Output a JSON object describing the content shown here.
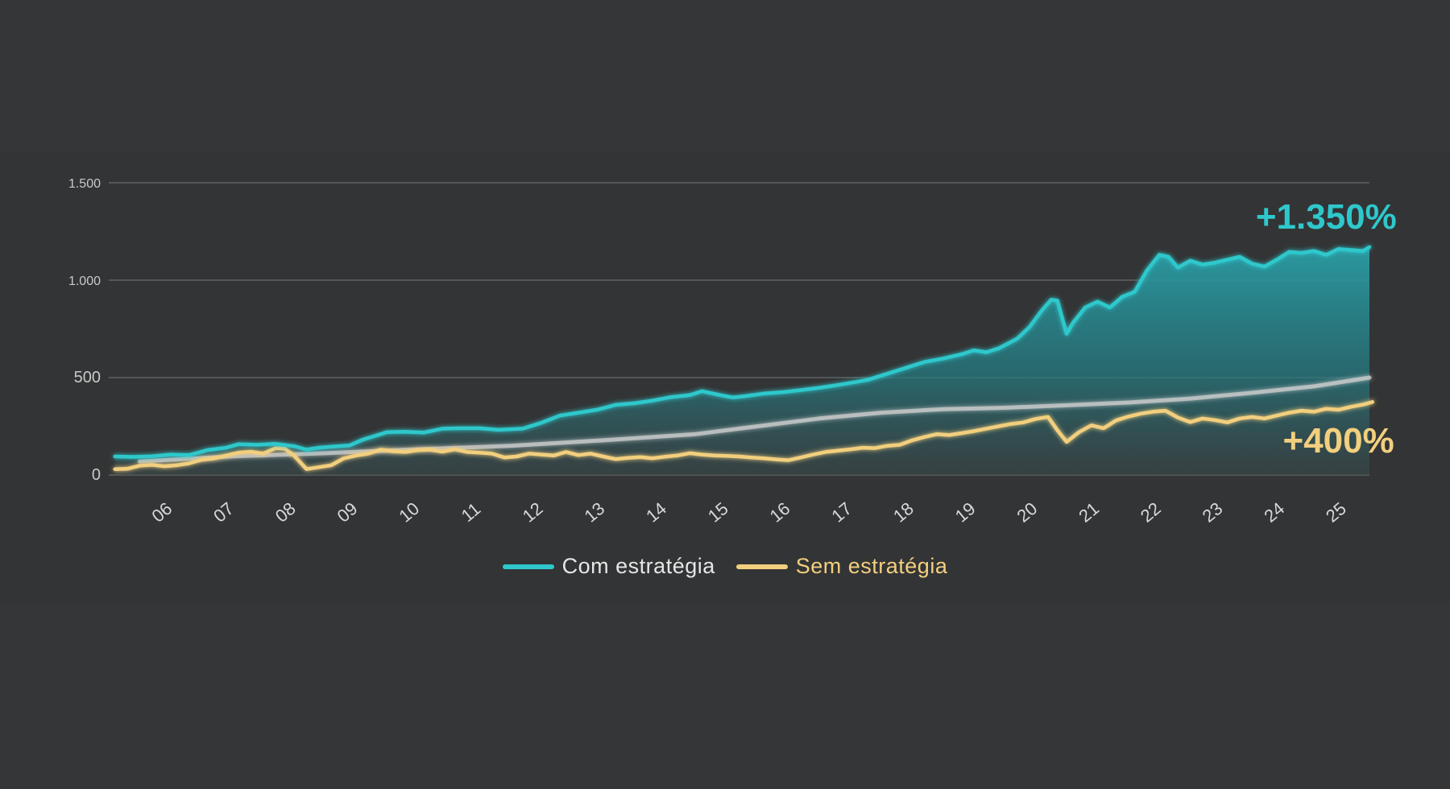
{
  "colors": {
    "background": "#353637",
    "com": "#2ec8cc",
    "sem": "#f2cf7e",
    "baseline": "#cfcfcf",
    "grid": "#6a6b6c"
  },
  "chart_data": {
    "type": "line",
    "title": "",
    "xlabel": "",
    "ylabel": "",
    "ylim": [
      0,
      1500
    ],
    "yticks": [
      0,
      500,
      1000,
      1500
    ],
    "ytick_labels": [
      "0",
      "500",
      "1.000",
      "1.500"
    ],
    "xlim": [
      2005.0,
      2025.4
    ],
    "xticks": [
      2006,
      2007,
      2008,
      2009,
      2010,
      2011,
      2012,
      2013,
      2014,
      2015,
      2016,
      2017,
      2018,
      2019,
      2020,
      2021,
      2022,
      2023,
      2024,
      2025
    ],
    "xtick_labels": [
      "06",
      "07",
      "08",
      "09",
      "10",
      "11",
      "12",
      "13",
      "14",
      "15",
      "16",
      "17",
      "18",
      "19",
      "20",
      "21",
      "22",
      "23",
      "24",
      "25"
    ],
    "grid": true,
    "legend_position": "bottom-center",
    "series": [
      {
        "name": "Com estratégia",
        "color": "#2ec8cc",
        "filled": true,
        "points": [
          [
            2005.1,
            95
          ],
          [
            2005.4,
            93
          ],
          [
            2005.7,
            96
          ],
          [
            2006.0,
            105
          ],
          [
            2006.3,
            102
          ],
          [
            2006.6,
            128
          ],
          [
            2006.9,
            140
          ],
          [
            2007.1,
            158
          ],
          [
            2007.4,
            155
          ],
          [
            2007.7,
            160
          ],
          [
            2008.0,
            148
          ],
          [
            2008.2,
            130
          ],
          [
            2008.4,
            140
          ],
          [
            2008.6,
            145
          ],
          [
            2008.9,
            152
          ],
          [
            2009.1,
            180
          ],
          [
            2009.3,
            200
          ],
          [
            2009.5,
            220
          ],
          [
            2009.8,
            222
          ],
          [
            2010.1,
            218
          ],
          [
            2010.4,
            238
          ],
          [
            2010.7,
            240
          ],
          [
            2011.0,
            240
          ],
          [
            2011.3,
            232
          ],
          [
            2011.7,
            238
          ],
          [
            2012.0,
            268
          ],
          [
            2012.3,
            305
          ],
          [
            2012.6,
            320
          ],
          [
            2012.9,
            335
          ],
          [
            2013.2,
            360
          ],
          [
            2013.5,
            368
          ],
          [
            2013.8,
            382
          ],
          [
            2014.1,
            400
          ],
          [
            2014.4,
            410
          ],
          [
            2014.6,
            430
          ],
          [
            2014.9,
            410
          ],
          [
            2015.1,
            398
          ],
          [
            2015.3,
            405
          ],
          [
            2015.6,
            418
          ],
          [
            2015.9,
            425
          ],
          [
            2016.2,
            436
          ],
          [
            2016.5,
            448
          ],
          [
            2016.8,
            462
          ],
          [
            2017.1,
            478
          ],
          [
            2017.3,
            490
          ],
          [
            2017.6,
            520
          ],
          [
            2017.9,
            550
          ],
          [
            2018.2,
            580
          ],
          [
            2018.5,
            598
          ],
          [
            2018.8,
            620
          ],
          [
            2019.0,
            640
          ],
          [
            2019.2,
            630
          ],
          [
            2019.4,
            650
          ],
          [
            2019.7,
            700
          ],
          [
            2019.9,
            760
          ],
          [
            2020.1,
            845
          ],
          [
            2020.25,
            900
          ],
          [
            2020.35,
            895
          ],
          [
            2020.5,
            725
          ],
          [
            2020.6,
            780
          ],
          [
            2020.8,
            860
          ],
          [
            2021.0,
            890
          ],
          [
            2021.2,
            860
          ],
          [
            2021.4,
            915
          ],
          [
            2021.6,
            940
          ],
          [
            2021.8,
            1050
          ],
          [
            2022.0,
            1130
          ],
          [
            2022.15,
            1120
          ],
          [
            2022.3,
            1065
          ],
          [
            2022.5,
            1100
          ],
          [
            2022.7,
            1080
          ],
          [
            2022.9,
            1090
          ],
          [
            2023.1,
            1105
          ],
          [
            2023.3,
            1120
          ],
          [
            2023.5,
            1085
          ],
          [
            2023.7,
            1070
          ],
          [
            2023.9,
            1105
          ],
          [
            2024.1,
            1145
          ],
          [
            2024.3,
            1140
          ],
          [
            2024.5,
            1150
          ],
          [
            2024.7,
            1130
          ],
          [
            2024.9,
            1160
          ],
          [
            2025.1,
            1155
          ],
          [
            2025.3,
            1150
          ],
          [
            2025.4,
            1170
          ]
        ]
      },
      {
        "name": "Sem estratégia",
        "color": "#f2cf7e",
        "filled": false,
        "points": [
          [
            2005.1,
            30
          ],
          [
            2005.3,
            32
          ],
          [
            2005.5,
            48
          ],
          [
            2005.7,
            52
          ],
          [
            2005.9,
            45
          ],
          [
            2006.1,
            50
          ],
          [
            2006.3,
            60
          ],
          [
            2006.5,
            78
          ],
          [
            2006.7,
            85
          ],
          [
            2006.9,
            100
          ],
          [
            2007.1,
            115
          ],
          [
            2007.3,
            120
          ],
          [
            2007.5,
            110
          ],
          [
            2007.7,
            138
          ],
          [
            2007.85,
            135
          ],
          [
            2008.0,
            100
          ],
          [
            2008.2,
            30
          ],
          [
            2008.4,
            40
          ],
          [
            2008.6,
            50
          ],
          [
            2008.8,
            85
          ],
          [
            2009.0,
            100
          ],
          [
            2009.2,
            110
          ],
          [
            2009.4,
            130
          ],
          [
            2009.6,
            122
          ],
          [
            2009.8,
            118
          ],
          [
            2010.0,
            128
          ],
          [
            2010.2,
            130
          ],
          [
            2010.4,
            120
          ],
          [
            2010.6,
            132
          ],
          [
            2010.8,
            118
          ],
          [
            2011.0,
            115
          ],
          [
            2011.2,
            110
          ],
          [
            2011.4,
            90
          ],
          [
            2011.6,
            95
          ],
          [
            2011.8,
            110
          ],
          [
            2012.0,
            105
          ],
          [
            2012.2,
            100
          ],
          [
            2012.4,
            118
          ],
          [
            2012.6,
            102
          ],
          [
            2012.8,
            110
          ],
          [
            2013.0,
            95
          ],
          [
            2013.2,
            82
          ],
          [
            2013.4,
            88
          ],
          [
            2013.6,
            92
          ],
          [
            2013.8,
            86
          ],
          [
            2014.0,
            94
          ],
          [
            2014.2,
            100
          ],
          [
            2014.4,
            112
          ],
          [
            2014.6,
            105
          ],
          [
            2014.8,
            100
          ],
          [
            2015.0,
            98
          ],
          [
            2015.2,
            95
          ],
          [
            2015.4,
            90
          ],
          [
            2015.6,
            86
          ],
          [
            2015.8,
            80
          ],
          [
            2016.0,
            76
          ],
          [
            2016.2,
            90
          ],
          [
            2016.4,
            105
          ],
          [
            2016.6,
            118
          ],
          [
            2016.8,
            125
          ],
          [
            2017.0,
            132
          ],
          [
            2017.2,
            140
          ],
          [
            2017.4,
            138
          ],
          [
            2017.6,
            150
          ],
          [
            2017.8,
            155
          ],
          [
            2018.0,
            178
          ],
          [
            2018.2,
            195
          ],
          [
            2018.4,
            210
          ],
          [
            2018.6,
            205
          ],
          [
            2018.8,
            215
          ],
          [
            2019.0,
            225
          ],
          [
            2019.2,
            238
          ],
          [
            2019.4,
            250
          ],
          [
            2019.6,
            262
          ],
          [
            2019.8,
            270
          ],
          [
            2020.0,
            288
          ],
          [
            2020.2,
            298
          ],
          [
            2020.35,
            230
          ],
          [
            2020.5,
            170
          ],
          [
            2020.7,
            220
          ],
          [
            2020.9,
            255
          ],
          [
            2021.1,
            240
          ],
          [
            2021.3,
            280
          ],
          [
            2021.5,
            300
          ],
          [
            2021.7,
            315
          ],
          [
            2021.9,
            325
          ],
          [
            2022.1,
            330
          ],
          [
            2022.3,
            295
          ],
          [
            2022.5,
            272
          ],
          [
            2022.7,
            290
          ],
          [
            2022.9,
            282
          ],
          [
            2023.1,
            270
          ],
          [
            2023.3,
            290
          ],
          [
            2023.5,
            298
          ],
          [
            2023.7,
            290
          ],
          [
            2023.9,
            305
          ],
          [
            2024.1,
            320
          ],
          [
            2024.3,
            330
          ],
          [
            2024.5,
            325
          ],
          [
            2024.7,
            340
          ],
          [
            2024.9,
            335
          ],
          [
            2025.1,
            350
          ],
          [
            2025.3,
            362
          ],
          [
            2025.45,
            375
          ]
        ]
      },
      {
        "name": "",
        "color": "#cfcfcf",
        "filled": false,
        "points": [
          [
            2005.5,
            70
          ],
          [
            2007.0,
            96
          ],
          [
            2008.5,
            112
          ],
          [
            2010.0,
            132
          ],
          [
            2011.5,
            150
          ],
          [
            2013.0,
            178
          ],
          [
            2014.5,
            210
          ],
          [
            2015.5,
            250
          ],
          [
            2016.5,
            290
          ],
          [
            2017.5,
            320
          ],
          [
            2018.5,
            338
          ],
          [
            2019.5,
            345
          ],
          [
            2020.5,
            358
          ],
          [
            2021.5,
            372
          ],
          [
            2022.5,
            392
          ],
          [
            2023.5,
            422
          ],
          [
            2024.5,
            455
          ],
          [
            2025.4,
            500
          ]
        ]
      }
    ],
    "annotations": [
      {
        "text": "+1.350%",
        "series": "Com estratégia",
        "x": 2024.7,
        "y": 1265
      },
      {
        "text": "+400%",
        "series": "Sem estratégia",
        "x": 2024.9,
        "y": 115
      }
    ]
  },
  "legend": {
    "items": [
      {
        "label": "Com estratégia",
        "color": "#2ec8cc"
      },
      {
        "label": "Sem estratégia",
        "color": "#f2cf7e"
      }
    ]
  }
}
